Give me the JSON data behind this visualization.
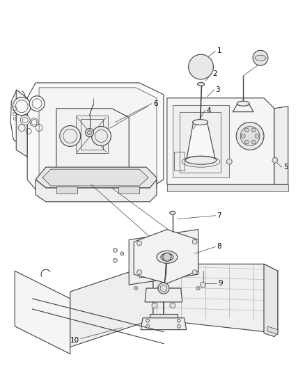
{
  "background_color": "#ffffff",
  "line_color": "#404040",
  "label_color": "#000000",
  "fig_width": 4.38,
  "fig_height": 5.33,
  "dpi": 100,
  "lw_main": 0.8,
  "lw_thin": 0.5,
  "label_fontsize": 7.5
}
